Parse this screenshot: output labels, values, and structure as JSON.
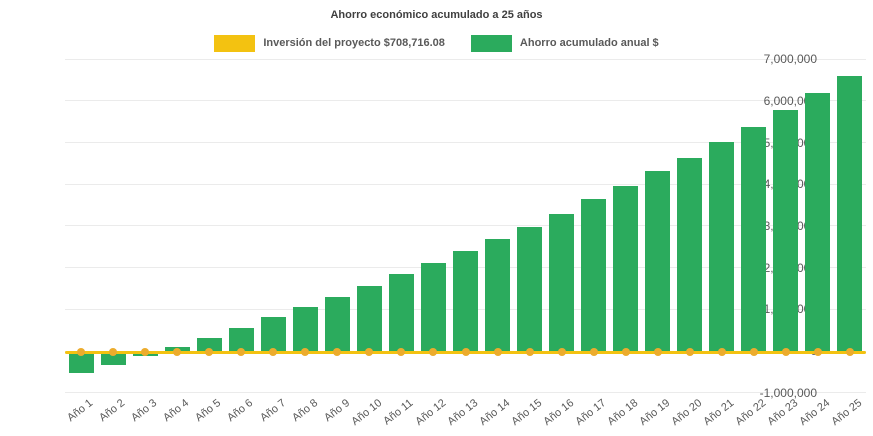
{
  "title": "Ahorro económico acumulado a 25 años",
  "background_color": "#ffffff",
  "text_colors": {
    "title": "#3f3f3f",
    "axis": "#595959",
    "legend": "#595959"
  },
  "legend": [
    {
      "label": "Inversión del proyecto $708,716.08",
      "color": "#f3c211"
    },
    {
      "label": "Ahorro acumulado anual $",
      "color": "#2bab5d"
    }
  ],
  "chart_data": {
    "type": "bar",
    "title": "Ahorro económico acumulado a 25 años",
    "categories": [
      "Año 1",
      "Año 2",
      "Año 3",
      "Año 4",
      "Año 5",
      "Año 6",
      "Año 7",
      "Año 8",
      "Año 9",
      "Año 10",
      "Año 11",
      "Año 12",
      "Año 13",
      "Año 14",
      "Año 15",
      "Año 16",
      "Año 17",
      "Año 18",
      "Año 19",
      "Año 20",
      "Año 21",
      "Año 22",
      "Año 23",
      "Año 24",
      "Año 25"
    ],
    "series": [
      {
        "name": "Ahorro acumulado anual $",
        "type": "bar",
        "color": "#2bab5d",
        "values": [
          -530000,
          -340000,
          -130000,
          90000,
          320000,
          560000,
          810000,
          1050000,
          1300000,
          1570000,
          1840000,
          2120000,
          2400000,
          2690000,
          2980000,
          3290000,
          3640000,
          3950000,
          4320000,
          4640000,
          5020000,
          5380000,
          5770000,
          6180000,
          6600000
        ]
      },
      {
        "name": "Inversión del proyecto $708,716.08",
        "type": "line",
        "color": "#f3c211",
        "marker_color": "#ecac2d",
        "values": [
          0,
          0,
          0,
          0,
          0,
          0,
          0,
          0,
          0,
          0,
          0,
          0,
          0,
          0,
          0,
          0,
          0,
          0,
          0,
          0,
          0,
          0,
          0,
          0,
          0
        ]
      }
    ],
    "xlabel": "",
    "ylabel": "",
    "ylim": [
      -1000000,
      7000000
    ],
    "ytick_step": 1000000,
    "ytick_labels": [
      "7,000,000",
      "6,000,000",
      "5,000,000",
      "4,000,000",
      "3,000,000",
      "2,000,000",
      "1,000,000",
      "0",
      "-1,000,000"
    ],
    "grid": true,
    "legend_position": "top"
  }
}
